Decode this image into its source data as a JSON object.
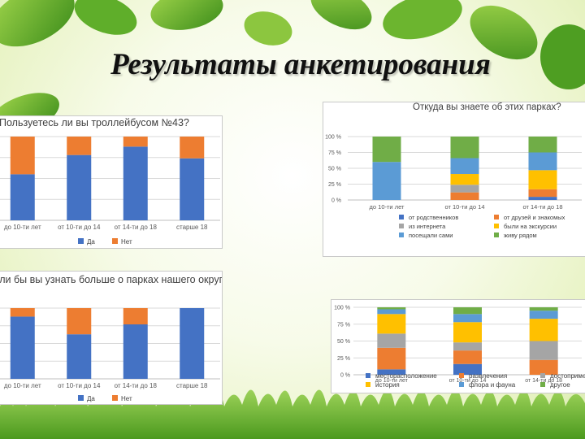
{
  "slide": {
    "title": "Результаты анкетирования"
  },
  "colors": {
    "blue": "#4472C4",
    "orange": "#ED7D31",
    "gray": "#A5A5A5",
    "yellow": "#FFC000",
    "lightblue": "#5B9BD5",
    "green": "#70AD47"
  },
  "chart_data": [
    {
      "id": "trolleybus",
      "type": "bar",
      "stacked": "percent",
      "title": "Пользуетесь ли вы троллейбусом №43?",
      "categories": [
        "до 10-ти лет",
        "от 10-ти до 14",
        "от 14-ти до 18",
        "старше 18"
      ],
      "series": [
        {
          "name": "Да",
          "values": [
            55,
            78,
            88,
            74
          ],
          "color": "#4472C4"
        },
        {
          "name": "Нет",
          "values": [
            45,
            22,
            12,
            26
          ],
          "color": "#ED7D31"
        }
      ],
      "ylim": [
        0,
        100
      ],
      "grid": true,
      "legend": "bottom"
    },
    {
      "id": "source",
      "type": "bar",
      "stacked": "percent",
      "title": "Откуда вы знаете об этих парках?",
      "categories": [
        "до 10-ти лет",
        "от 10-ти до 14",
        "от 14-ти до 18"
      ],
      "yticks": [
        "0 %",
        "25 %",
        "50 %",
        "75 %",
        "100 %"
      ],
      "series": [
        {
          "name": "от родственников",
          "values": [
            0,
            0,
            5
          ],
          "color": "#4472C4"
        },
        {
          "name": "от друзей и знакомых",
          "values": [
            0,
            12,
            12
          ],
          "color": "#ED7D31"
        },
        {
          "name": "из интернета",
          "values": [
            0,
            12,
            0
          ],
          "color": "#A5A5A5"
        },
        {
          "name": "были на экскурсии",
          "values": [
            0,
            17,
            30
          ],
          "color": "#FFC000"
        },
        {
          "name": "посещали сами",
          "values": [
            60,
            25,
            28
          ],
          "color": "#5B9BD5"
        },
        {
          "name": "живу рядом",
          "values": [
            40,
            34,
            25
          ],
          "color": "#70AD47"
        }
      ],
      "ylim": [
        0,
        100
      ],
      "grid": true,
      "legend": "bottom"
    },
    {
      "id": "learnmore",
      "type": "bar",
      "stacked": "percent",
      "title": "Хотели бы вы узнать больше о парках нашего округа?",
      "categories": [
        "до 10-ти лет",
        "от 10-ти до 14",
        "от 14-ти до 18",
        "старше 18"
      ],
      "series": [
        {
          "name": "Да",
          "values": [
            88,
            63,
            77,
            100
          ],
          "color": "#4472C4"
        },
        {
          "name": "Нет",
          "values": [
            12,
            37,
            23,
            0
          ],
          "color": "#ED7D31"
        }
      ],
      "ylim": [
        0,
        100
      ],
      "grid": true,
      "legend": "bottom"
    },
    {
      "id": "interests",
      "type": "bar",
      "stacked": "percent",
      "title": "",
      "categories": [
        "до 10-ти лет",
        "от 10-ти до 14",
        "от 14-ти до 18"
      ],
      "yticks": [
        "0 %",
        "25 %",
        "50 %",
        "75 %",
        "100 %"
      ],
      "series": [
        {
          "name": "месторасположение",
          "values": [
            8,
            16,
            0
          ],
          "color": "#4472C4"
        },
        {
          "name": "развлечения",
          "values": [
            32,
            20,
            22
          ],
          "color": "#ED7D31"
        },
        {
          "name": "достопримечательности",
          "values": [
            21,
            12,
            28
          ],
          "color": "#A5A5A5"
        },
        {
          "name": "история",
          "values": [
            29,
            30,
            33
          ],
          "color": "#FFC000"
        },
        {
          "name": "флора и фауна",
          "values": [
            7,
            12,
            12
          ],
          "color": "#5B9BD5"
        },
        {
          "name": "другое",
          "values": [
            3,
            10,
            5
          ],
          "color": "#70AD47"
        }
      ],
      "ylim": [
        0,
        100
      ],
      "grid": true,
      "legend": "bottom"
    }
  ]
}
